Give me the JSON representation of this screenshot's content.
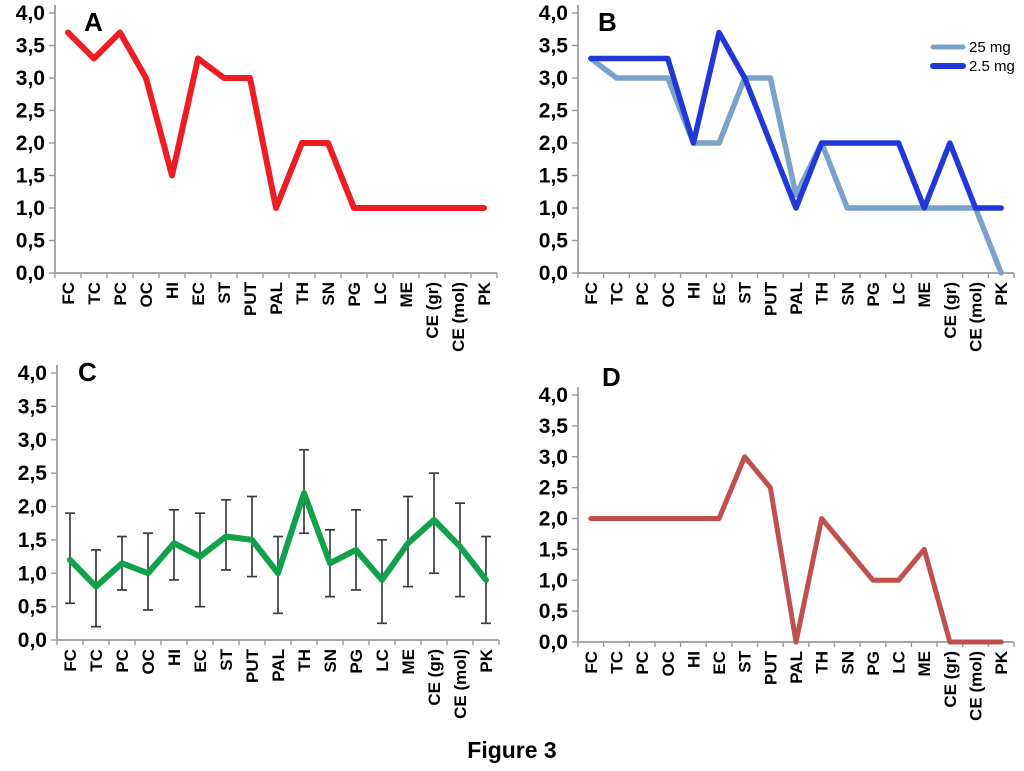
{
  "figure": {
    "caption": "Figure 3"
  },
  "axes_shared": {
    "ylim": [
      0,
      4
    ],
    "ytick_step": 0.5,
    "ytick_labels": [
      "4,0",
      "3,5",
      "3,0",
      "2,5",
      "2,0",
      "1,5",
      "1,0",
      "0,5",
      "0,0"
    ],
    "categories": [
      "FC",
      "TC",
      "PC",
      "OC",
      "HI",
      "EC",
      "ST",
      "PUT",
      "PAL",
      "TH",
      "SN",
      "PG",
      "LC",
      "ME",
      "CE (gr)",
      "CE (mol)",
      "PK"
    ],
    "grid": false
  },
  "chart_data": [
    {
      "type": "line",
      "panel_label": "A",
      "categories": [
        "FC",
        "TC",
        "PC",
        "OC",
        "HI",
        "EC",
        "ST",
        "PUT",
        "PAL",
        "TH",
        "SN",
        "PG",
        "LC",
        "ME",
        "CE (gr)",
        "CE (mol)",
        "PK"
      ],
      "ylim": [
        0,
        4
      ],
      "legend": false,
      "series": [
        {
          "name": "",
          "color": "#ee1c23",
          "values": [
            3.7,
            3.3,
            3.7,
            3.0,
            1.5,
            3.3,
            3.0,
            3.0,
            1.0,
            2.0,
            2.0,
            1.0,
            1.0,
            1.0,
            1.0,
            1.0,
            1.0
          ]
        }
      ]
    },
    {
      "type": "line",
      "panel_label": "B",
      "categories": [
        "FC",
        "TC",
        "PC",
        "OC",
        "HI",
        "EC",
        "ST",
        "PUT",
        "PAL",
        "TH",
        "SN",
        "PG",
        "LC",
        "ME",
        "CE (gr)",
        "CE (mol)",
        "PK"
      ],
      "ylim": [
        0,
        4
      ],
      "legend": true,
      "legend_position": "top-right",
      "series": [
        {
          "name": "25 mg",
          "color": "#7aa3cc",
          "values": [
            3.3,
            3.0,
            3.0,
            3.0,
            2.0,
            2.0,
            3.0,
            3.0,
            1.2,
            2.0,
            1.0,
            1.0,
            1.0,
            1.0,
            1.0,
            1.0,
            0.0
          ]
        },
        {
          "name": "2.5 mg",
          "color": "#2138d8",
          "values": [
            3.3,
            3.3,
            3.3,
            3.3,
            2.0,
            3.7,
            3.0,
            2.0,
            1.0,
            2.0,
            2.0,
            2.0,
            2.0,
            1.0,
            2.0,
            1.0,
            1.0
          ]
        }
      ]
    },
    {
      "type": "line",
      "panel_label": "C",
      "categories": [
        "FC",
        "TC",
        "PC",
        "OC",
        "HI",
        "EC",
        "ST",
        "PUT",
        "PAL",
        "TH",
        "SN",
        "PG",
        "LC",
        "ME",
        "CE (gr)",
        "CE (mol)",
        "PK"
      ],
      "ylim": [
        0,
        4
      ],
      "legend": false,
      "series": [
        {
          "name": "",
          "color": "#12a14b",
          "values": [
            1.2,
            0.8,
            1.15,
            1.0,
            1.45,
            1.25,
            1.55,
            1.5,
            1.0,
            2.2,
            1.15,
            1.35,
            0.9,
            1.45,
            1.8,
            1.4,
            0.9
          ],
          "error_upper": [
            1.9,
            1.35,
            1.55,
            1.6,
            1.95,
            1.9,
            2.1,
            2.15,
            1.55,
            2.85,
            1.65,
            1.95,
            1.5,
            2.15,
            2.5,
            2.05,
            1.55
          ],
          "error_lower": [
            0.55,
            0.2,
            0.75,
            0.45,
            0.9,
            0.5,
            1.05,
            0.95,
            0.4,
            1.6,
            0.65,
            0.75,
            0.25,
            0.8,
            1.0,
            0.65,
            0.25
          ]
        }
      ]
    },
    {
      "type": "line",
      "panel_label": "D",
      "categories": [
        "FC",
        "TC",
        "PC",
        "OC",
        "HI",
        "EC",
        "ST",
        "PUT",
        "PAL",
        "TH",
        "SN",
        "PG",
        "LC",
        "ME",
        "CE (gr)",
        "CE (mol)",
        "PK"
      ],
      "ylim": [
        0,
        4
      ],
      "legend": false,
      "series": [
        {
          "name": "",
          "color": "#c0504d",
          "values": [
            2.0,
            2.0,
            2.0,
            2.0,
            2.0,
            2.0,
            3.0,
            2.5,
            0.0,
            2.0,
            1.5,
            1.0,
            1.0,
            1.5,
            0.0,
            0.0,
            0.0
          ]
        }
      ]
    }
  ]
}
